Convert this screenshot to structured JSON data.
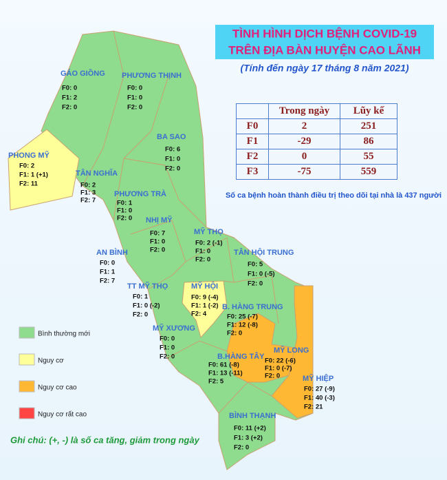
{
  "header": {
    "title_line1": "TÌNH HÌNH DỊCH BỆNH COVID-19",
    "title_line2": "TRÊN ĐỊA BÀN HUYỆN CAO LÃNH",
    "subtitle": "(Tính đến ngày 17 tháng 8 năm 2021)"
  },
  "table": {
    "columns": [
      "Trong ngày",
      "Lũy kế"
    ],
    "rows": [
      [
        "F0",
        2,
        251
      ],
      [
        "F1",
        -29,
        86
      ],
      [
        "F2",
        0,
        55
      ],
      [
        "F3",
        -75,
        559
      ]
    ]
  },
  "note": "Số ca bệnh hoàn thành điều trị theo dõi tại nhà là 437 người",
  "legend": [
    {
      "label": "Bình thường mới",
      "color": "#8fdc8f"
    },
    {
      "label": "Nguy cơ",
      "color": "#ffff99"
    },
    {
      "label": "Nguy cơ cao",
      "color": "#ffb833"
    },
    {
      "label": "Nguy cơ rất cao",
      "color": "#ff4444"
    }
  ],
  "regions": [
    {
      "name": "GÁO GIỒNG",
      "lines": [
        "F0: 0",
        "F1: 2",
        "F2: 0"
      ],
      "level": 0
    },
    {
      "name": "PHƯƠNG THỊNH",
      "lines": [
        "F0: 0",
        "F1: 0",
        "F2: 0"
      ],
      "level": 0
    },
    {
      "name": "BA SAO",
      "lines": [
        "F0: 6",
        "F1: 0",
        "F2: 0"
      ],
      "level": 0
    },
    {
      "name": "PHONG MỸ",
      "lines": [
        "F0: 2",
        "F1: 1 (+1)",
        "F2: 11"
      ],
      "level": 1
    },
    {
      "name": "TÂN NGHĨA",
      "lines": [
        "F0: 2",
        "F1: 3",
        "F2: 7"
      ],
      "level": 0
    },
    {
      "name": "PHƯƠNG TRÀ",
      "lines": [
        "F0: 1",
        "F1: 0",
        "F2: 0"
      ],
      "level": 0
    },
    {
      "name": "NHỊ MỸ",
      "lines": [
        "F0: 7",
        "F1: 0",
        "F2: 0"
      ],
      "level": 0
    },
    {
      "name": "MỸ THỌ",
      "lines": [
        "F0: 2 (-1)",
        "F1: 0",
        "F2: 0"
      ],
      "level": 0
    },
    {
      "name": "AN BÌNH",
      "lines": [
        "F0: 0",
        "F1: 1",
        "F2: 7"
      ],
      "level": 0
    },
    {
      "name": "TÂN HỘI TRUNG",
      "lines": [
        "F0: 5",
        "F1: 0 (-5)",
        "F2: 0"
      ],
      "level": 0
    },
    {
      "name": "TT MỸ THỌ",
      "lines": [
        "F0: 1",
        "F1: 0 (-2)",
        "F2: 0"
      ],
      "level": 0
    },
    {
      "name": "MỸ HỘI",
      "lines": [
        "F0: 9 (-4)",
        "F1: 1 (-2)",
        "F2: 4"
      ],
      "level": 1
    },
    {
      "name": "B. HÀNG TRUNG",
      "lines": [
        "F0: 25 (-7)",
        "F1: 12 (-8)",
        "F2: 0"
      ],
      "level": 2
    },
    {
      "name": "MỸ XƯƠNG",
      "lines": [
        "F0: 0",
        "F1: 0",
        "F2: 0"
      ],
      "level": 0
    },
    {
      "name": "MỸ LONG",
      "lines": [
        "F0: 22 (-6)",
        "F1: 0 (-7)",
        "F2: 0"
      ],
      "level": 2
    },
    {
      "name": "B.HÀNG TÂY",
      "lines": [
        "F0: 61 (-8)",
        "F1: 13 (-11)",
        "F2: 5"
      ],
      "level": 2
    },
    {
      "name": "MỸ HIỆP",
      "lines": [
        "F0: 27 (-9)",
        "F1: 40 (-3)",
        "F2: 21"
      ],
      "level": 2
    },
    {
      "name": "BÌNH THẠNH",
      "lines": [
        "F0: 11 (+2)",
        "F1: 3 (+2)",
        "F2: 0"
      ],
      "level": 0
    }
  ],
  "footnote": "Ghi chú: (+, -) là số ca tăng, giảm trong ngày"
}
